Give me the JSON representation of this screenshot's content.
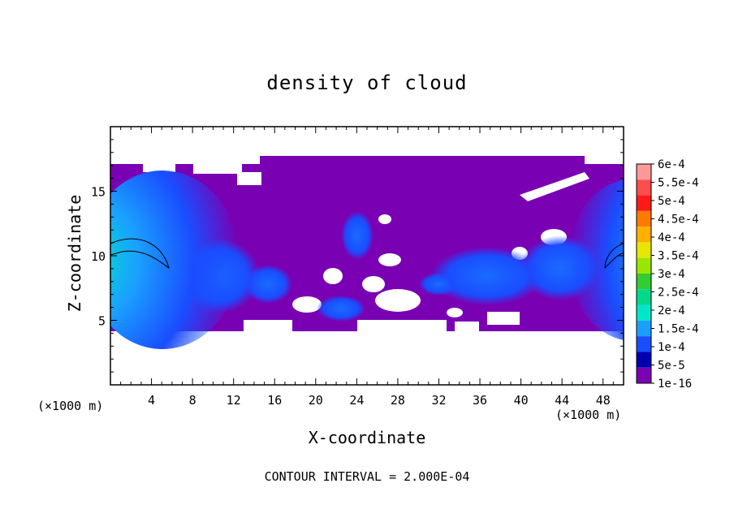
{
  "chart_data": {
    "type": "heatmap",
    "title": "density of cloud",
    "xlabel": "X-coordinate",
    "ylabel": "Z-coordinate",
    "x_unit_left": "(×1000 m)",
    "x_unit_right": "(×1000 m)",
    "footer": "CONTOUR INTERVAL = 2.000E-04",
    "xlim": [
      0,
      50
    ],
    "ylim": [
      0,
      20
    ],
    "x_ticks": [
      4,
      8,
      12,
      16,
      20,
      24,
      28,
      32,
      36,
      40,
      44,
      48
    ],
    "y_ticks": [
      5,
      10,
      15
    ],
    "colorbar": {
      "labels": [
        "6e-4",
        "5.5e-4",
        "5e-4",
        "4.5e-4",
        "4e-4",
        "3.5e-4",
        "3e-4",
        "2.5e-4",
        "2e-4",
        "1.5e-4",
        "1e-4",
        "5e-5",
        "1e-16"
      ],
      "colors": [
        "#ff9999",
        "#ff4d4d",
        "#ff1a1a",
        "#ff7a00",
        "#ffb000",
        "#e6e600",
        "#99e600",
        "#33cc33",
        "#00d98c",
        "#00e6c8",
        "#1a9fff",
        "#1a4dff",
        "#0000b3",
        "#7a00b3"
      ]
    },
    "cloud_layer_z": [
      4.3,
      17
    ],
    "cloud_max_density_approx": "2.5e-4",
    "grid": false
  }
}
